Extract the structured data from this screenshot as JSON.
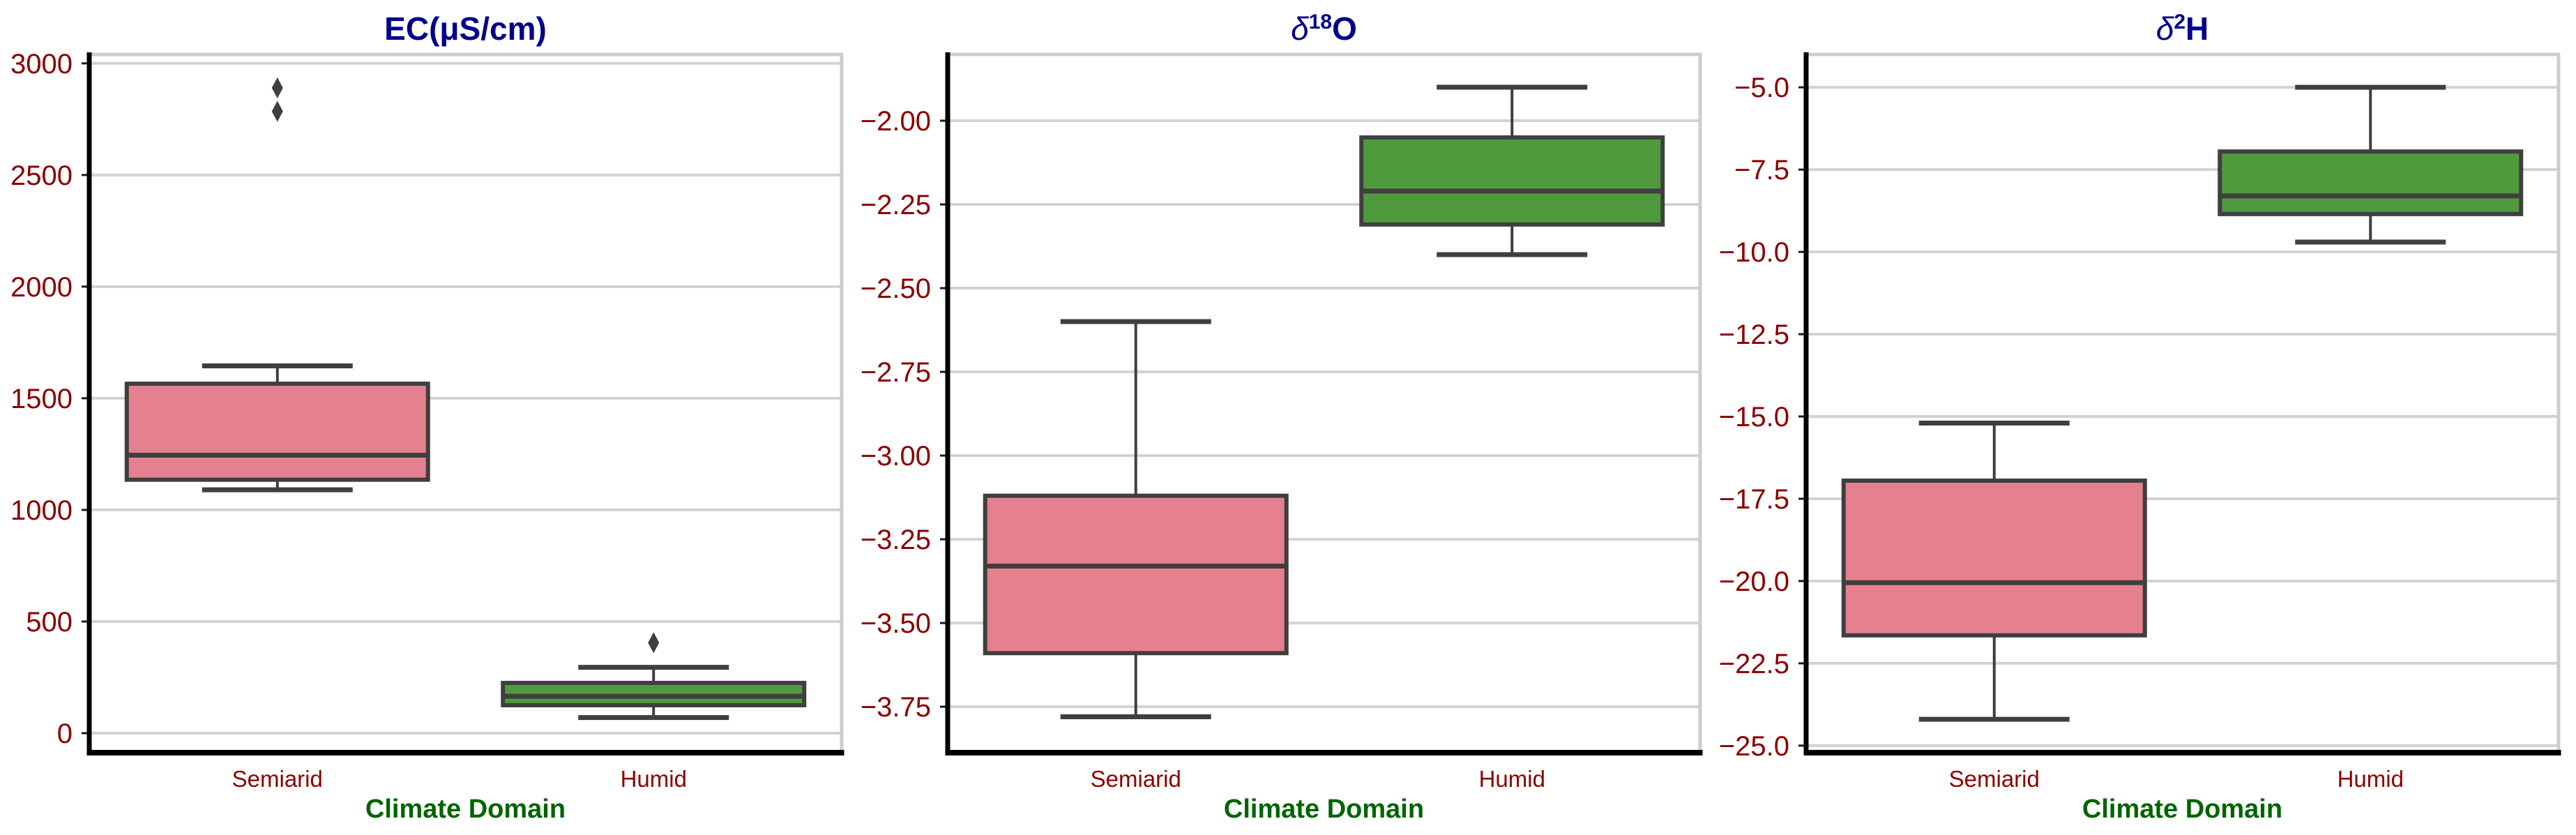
{
  "figure": {
    "xlabel": "Climate Domain",
    "categories": [
      "Semiarid",
      "Humid"
    ]
  },
  "colors": {
    "semiarid_fill": "#e5808f",
    "humid_fill": "#4f9a3d",
    "box_edge": "#3f3f3f",
    "whisker": "#3f3f3f",
    "outlier": "#3f3f3f",
    "grid": "#d2d2d2",
    "plot_border": "#cdcdcd",
    "spine": "#000000",
    "tick_mark": "#1a1a1a",
    "title": "#00008b",
    "tick_label": "#8b0000",
    "xlabel": "#006400",
    "background": "#ffffff"
  },
  "chart_data": [
    {
      "type": "boxplot",
      "title_parts": [
        {
          "t": "EC(μS/cm)",
          "style": "bold"
        }
      ],
      "xlabel": "Climate Domain",
      "categories": [
        "Semiarid",
        "Humid"
      ],
      "grid": true,
      "ylim": [
        -75,
        3040
      ],
      "yticks": [
        {
          "value": 3000,
          "label": "3000"
        },
        {
          "value": 2500,
          "label": "2500"
        },
        {
          "value": 2000,
          "label": "2000"
        },
        {
          "value": 1500,
          "label": "1500"
        },
        {
          "value": 1000,
          "label": "1000"
        },
        {
          "value": 500,
          "label": "500"
        },
        {
          "value": 0,
          "label": "0"
        }
      ],
      "series": [
        {
          "name": "Semiarid",
          "color_key": "semiarid_fill",
          "whisker_low": 1090,
          "q1": 1135,
          "median": 1245,
          "q3": 1565,
          "whisker_high": 1645,
          "outliers": [
            2785,
            2890
          ]
        },
        {
          "name": "Humid",
          "color_key": "humid_fill",
          "whisker_low": 70,
          "q1": 125,
          "median": 165,
          "q3": 225,
          "whisker_high": 295,
          "outliers": [
            405
          ]
        }
      ]
    },
    {
      "type": "boxplot",
      "title_parts": [
        {
          "t": "δ",
          "style": "italic"
        },
        {
          "t": "18",
          "style": "sup"
        },
        {
          "t": "O",
          "style": "bold"
        }
      ],
      "xlabel": "Climate Domain",
      "categories": [
        "Semiarid",
        "Humid"
      ],
      "grid": true,
      "ylim": [
        -3.879,
        -1.802
      ],
      "yticks": [
        {
          "value": -2.0,
          "label": "−2.00"
        },
        {
          "value": -2.25,
          "label": "−2.25"
        },
        {
          "value": -2.5,
          "label": "−2.50"
        },
        {
          "value": -2.75,
          "label": "−2.75"
        },
        {
          "value": -3.0,
          "label": "−3.00"
        },
        {
          "value": -3.25,
          "label": "−3.25"
        },
        {
          "value": -3.5,
          "label": "−3.50"
        },
        {
          "value": -3.75,
          "label": "−3.75"
        }
      ],
      "series": [
        {
          "name": "Semiarid",
          "color_key": "semiarid_fill",
          "whisker_low": -3.78,
          "q1": -3.59,
          "median": -3.33,
          "q3": -3.12,
          "whisker_high": -2.6,
          "outliers": []
        },
        {
          "name": "Humid",
          "color_key": "humid_fill",
          "whisker_low": -2.4,
          "q1": -2.31,
          "median": -2.21,
          "q3": -2.05,
          "whisker_high": -1.9,
          "outliers": []
        }
      ]
    },
    {
      "type": "boxplot",
      "title_parts": [
        {
          "t": "δ",
          "style": "italic"
        },
        {
          "t": "2",
          "style": "sup"
        },
        {
          "t": "H",
          "style": "bold"
        }
      ],
      "xlabel": "Climate Domain",
      "categories": [
        "Semiarid",
        "Humid"
      ],
      "grid": true,
      "ylim": [
        -25.13,
        -4.0
      ],
      "yticks": [
        {
          "value": -5.0,
          "label": "−5.0"
        },
        {
          "value": -7.5,
          "label": "−7.5"
        },
        {
          "value": -10.0,
          "label": "−10.0"
        },
        {
          "value": -12.5,
          "label": "−12.5"
        },
        {
          "value": -15.0,
          "label": "−15.0"
        },
        {
          "value": -17.5,
          "label": "−17.5"
        },
        {
          "value": -20.0,
          "label": "−20.0"
        },
        {
          "value": -22.5,
          "label": "−22.5"
        },
        {
          "value": -25.0,
          "label": "−25.0"
        }
      ],
      "series": [
        {
          "name": "Semiarid",
          "color_key": "semiarid_fill",
          "whisker_low": -24.2,
          "q1": -21.65,
          "median": -20.05,
          "q3": -16.95,
          "whisker_high": -15.2,
          "outliers": []
        },
        {
          "name": "Humid",
          "color_key": "humid_fill",
          "whisker_low": -9.7,
          "q1": -8.85,
          "median": -8.3,
          "q3": -6.95,
          "whisker_high": -5.0,
          "outliers": []
        }
      ]
    }
  ]
}
